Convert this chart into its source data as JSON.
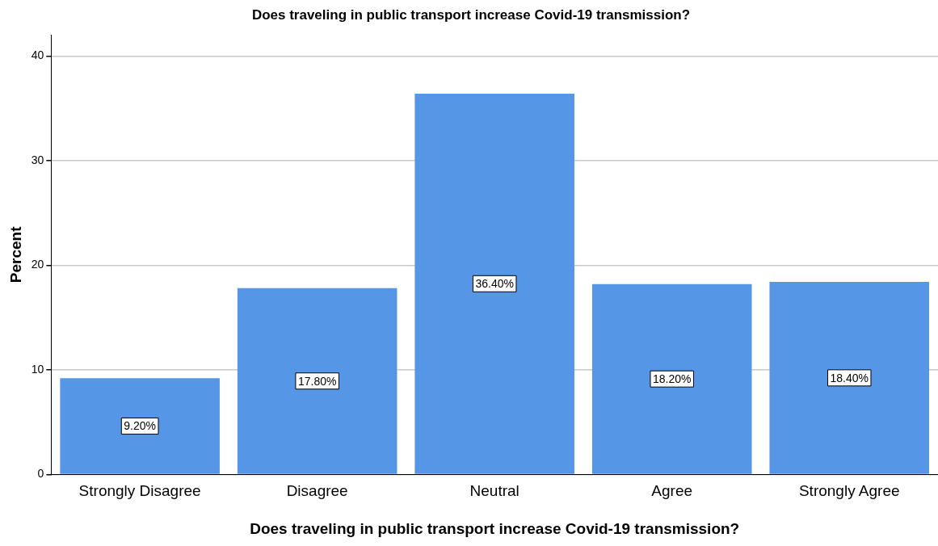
{
  "chart_data": {
    "type": "bar",
    "title": "Does traveling in public transport increase Covid-19 transmission?",
    "xlabel": "Does traveling in public transport increase Covid-19 transmission?",
    "ylabel": "Percent",
    "categories": [
      "Strongly Disagree",
      "Disagree",
      "Neutral",
      "Agree",
      "Strongly Agree"
    ],
    "values": [
      9.2,
      17.8,
      36.4,
      18.2,
      18.4
    ],
    "value_labels": [
      "9.20%",
      "17.80%",
      "36.40%",
      "18.20%",
      "18.40%"
    ],
    "color": "#5596e6",
    "ylim": [
      0,
      42
    ],
    "yticks": [
      0,
      10,
      20,
      30,
      40
    ],
    "grid": "y",
    "legend": false
  }
}
